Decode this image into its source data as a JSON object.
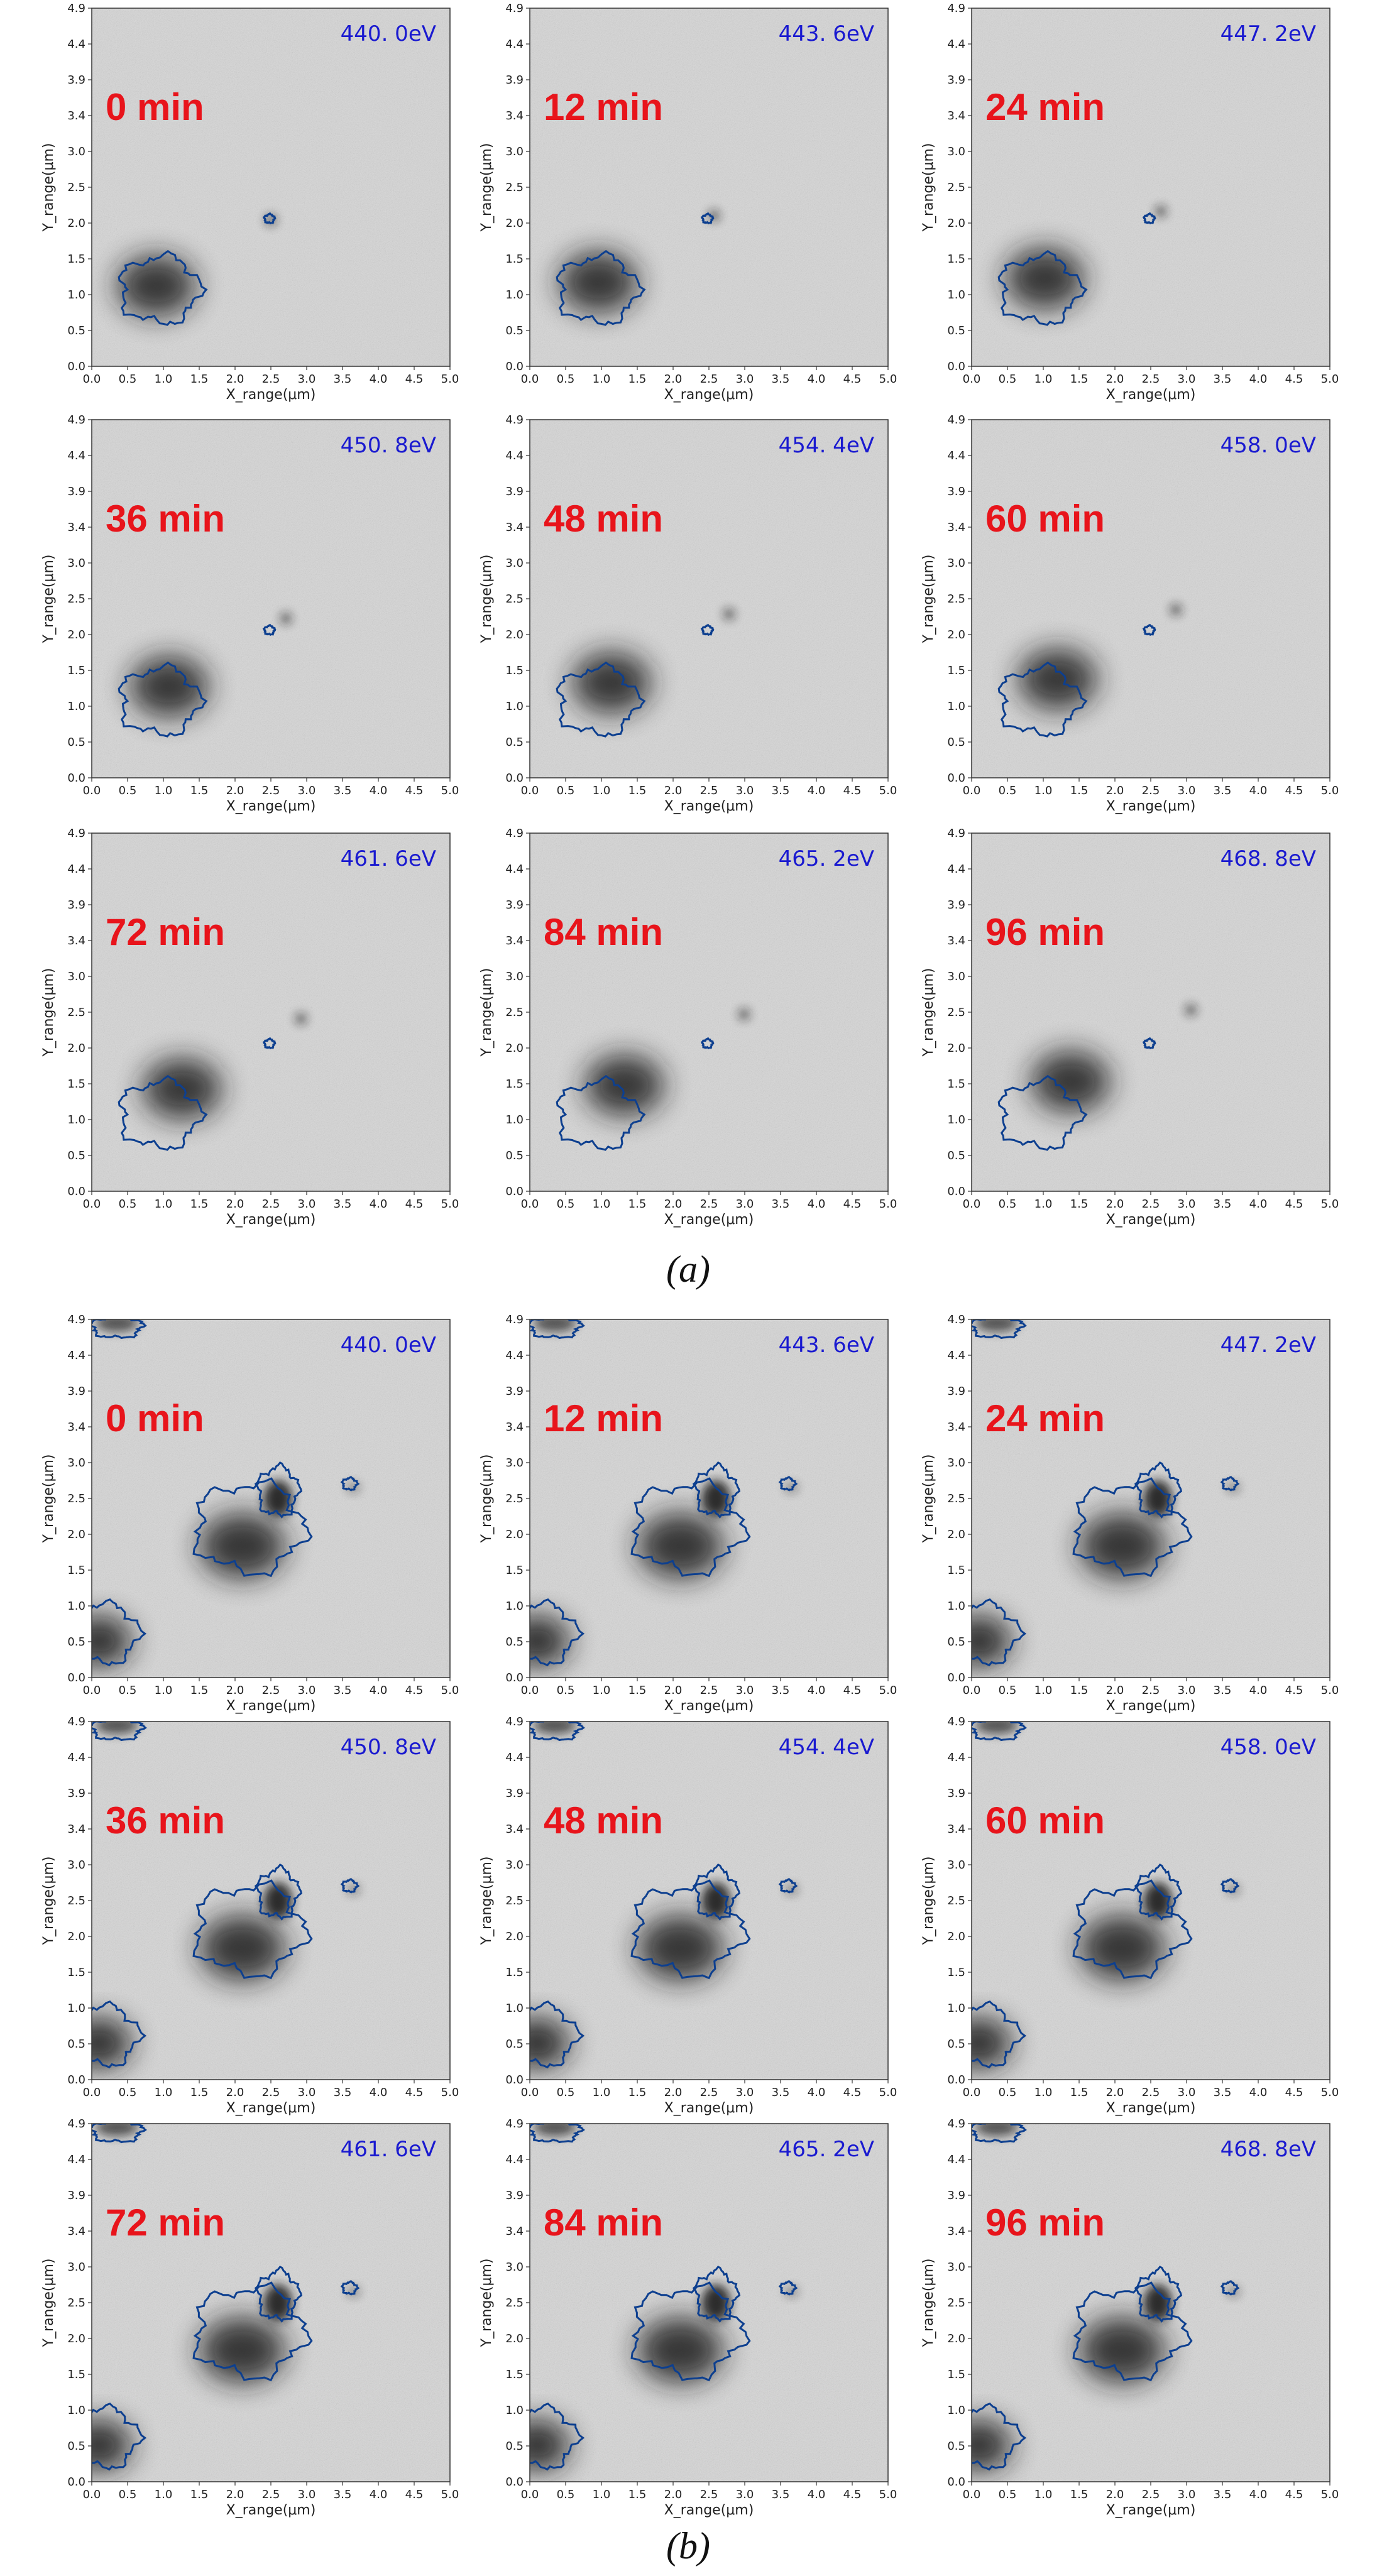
{
  "figure": {
    "x_label": "X_range(μm)",
    "y_label": "Y_range(μm)",
    "x_ticks": [
      "0.0",
      "0.5",
      "1.0",
      "1.5",
      "2.0",
      "2.5",
      "3.0",
      "3.5",
      "4.0",
      "4.5",
      "5.0"
    ],
    "y_ticks": [
      "0.0",
      "0.5",
      "1.0",
      "1.5",
      "2.0",
      "2.5",
      "3.0",
      "3.4",
      "3.9",
      "4.4",
      "4.9"
    ],
    "groups": [
      {
        "caption": "(a)",
        "panels": [
          {
            "time": "0 min",
            "energy": "440. 0eV"
          },
          {
            "time": "12 min",
            "energy": "443. 6eV"
          },
          {
            "time": "24 min",
            "energy": "447. 2eV"
          },
          {
            "time": "36 min",
            "energy": "450. 8eV"
          },
          {
            "time": "48 min",
            "energy": "454. 4eV"
          },
          {
            "time": "60 min",
            "energy": "458. 0eV"
          },
          {
            "time": "72 min",
            "energy": "461. 6eV"
          },
          {
            "time": "84 min",
            "energy": "465. 2eV"
          },
          {
            "time": "96 min",
            "energy": "468. 8eV"
          }
        ]
      },
      {
        "caption": "(b)",
        "panels": [
          {
            "time": "0 min",
            "energy": "440. 0eV"
          },
          {
            "time": "12 min",
            "energy": "443. 6eV"
          },
          {
            "time": "24 min",
            "energy": "447. 2eV"
          },
          {
            "time": "36 min",
            "energy": "450. 8eV"
          },
          {
            "time": "48 min",
            "energy": "454. 4eV"
          },
          {
            "time": "60 min",
            "energy": "458. 0eV"
          },
          {
            "time": "72 min",
            "energy": "461. 6eV"
          },
          {
            "time": "84 min",
            "energy": "465. 2eV"
          },
          {
            "time": "96 min",
            "energy": "468. 8eV"
          }
        ]
      }
    ]
  }
}
